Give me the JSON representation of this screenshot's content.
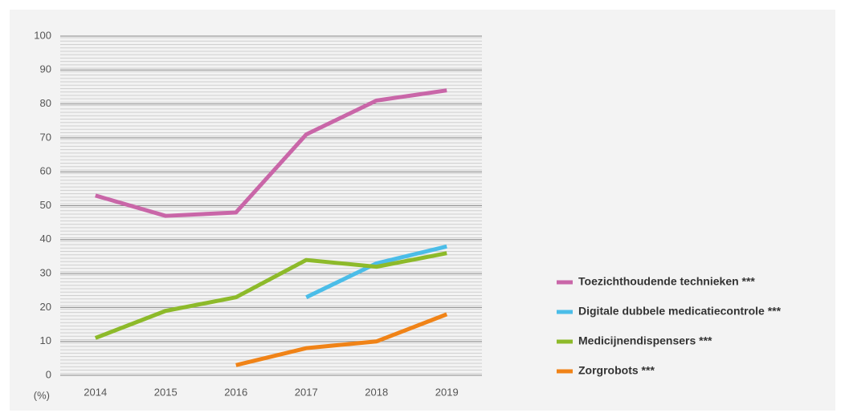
{
  "chart_data": {
    "type": "line",
    "y_label": "(%)",
    "categories": [
      "2014",
      "2015",
      "2016",
      "2017",
      "2018",
      "2019"
    ],
    "series": [
      {
        "name": "Toezichthoudende technieken ***",
        "color": "#c966a8",
        "values": [
          53,
          47,
          48,
          71,
          81,
          84
        ]
      },
      {
        "name": "Digitale dubbele medicatiecontrole ***",
        "color": "#4bbde8",
        "values": [
          null,
          null,
          null,
          23,
          33,
          38
        ]
      },
      {
        "name": "Medicijnendispensers ***",
        "color": "#8dba2a",
        "values": [
          11,
          19,
          23,
          34,
          32,
          36
        ]
      },
      {
        "name": "Zorgrobots ***",
        "color": "#f08317",
        "values": [
          null,
          null,
          3,
          8,
          10,
          18
        ]
      }
    ],
    "ylim": [
      0,
      100
    ],
    "yticks": [
      0,
      10,
      20,
      30,
      40,
      50,
      60,
      70,
      80,
      90,
      100
    ],
    "grid": true
  }
}
